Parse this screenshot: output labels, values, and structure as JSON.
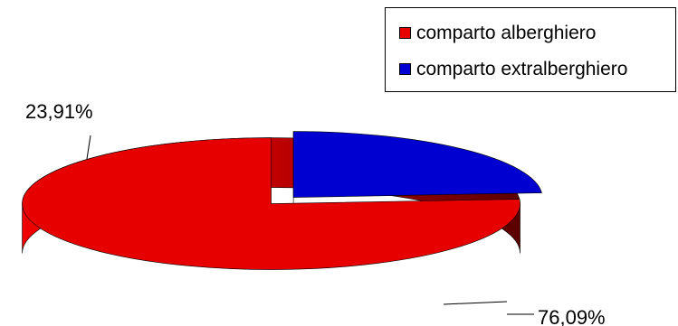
{
  "chart_data": {
    "type": "pie",
    "style": "3d-exploded",
    "categories": [
      "comparto alberghiero",
      "comparto extralberghiero"
    ],
    "values": [
      76.09,
      23.91
    ],
    "data_labels": [
      "76,09%",
      "23,91%"
    ],
    "colors": [
      "#e60000",
      "#0000d0"
    ],
    "legend": {
      "placement": "top-right",
      "entries": [
        "comparto alberghiero",
        "comparto extralberghiero"
      ]
    }
  }
}
